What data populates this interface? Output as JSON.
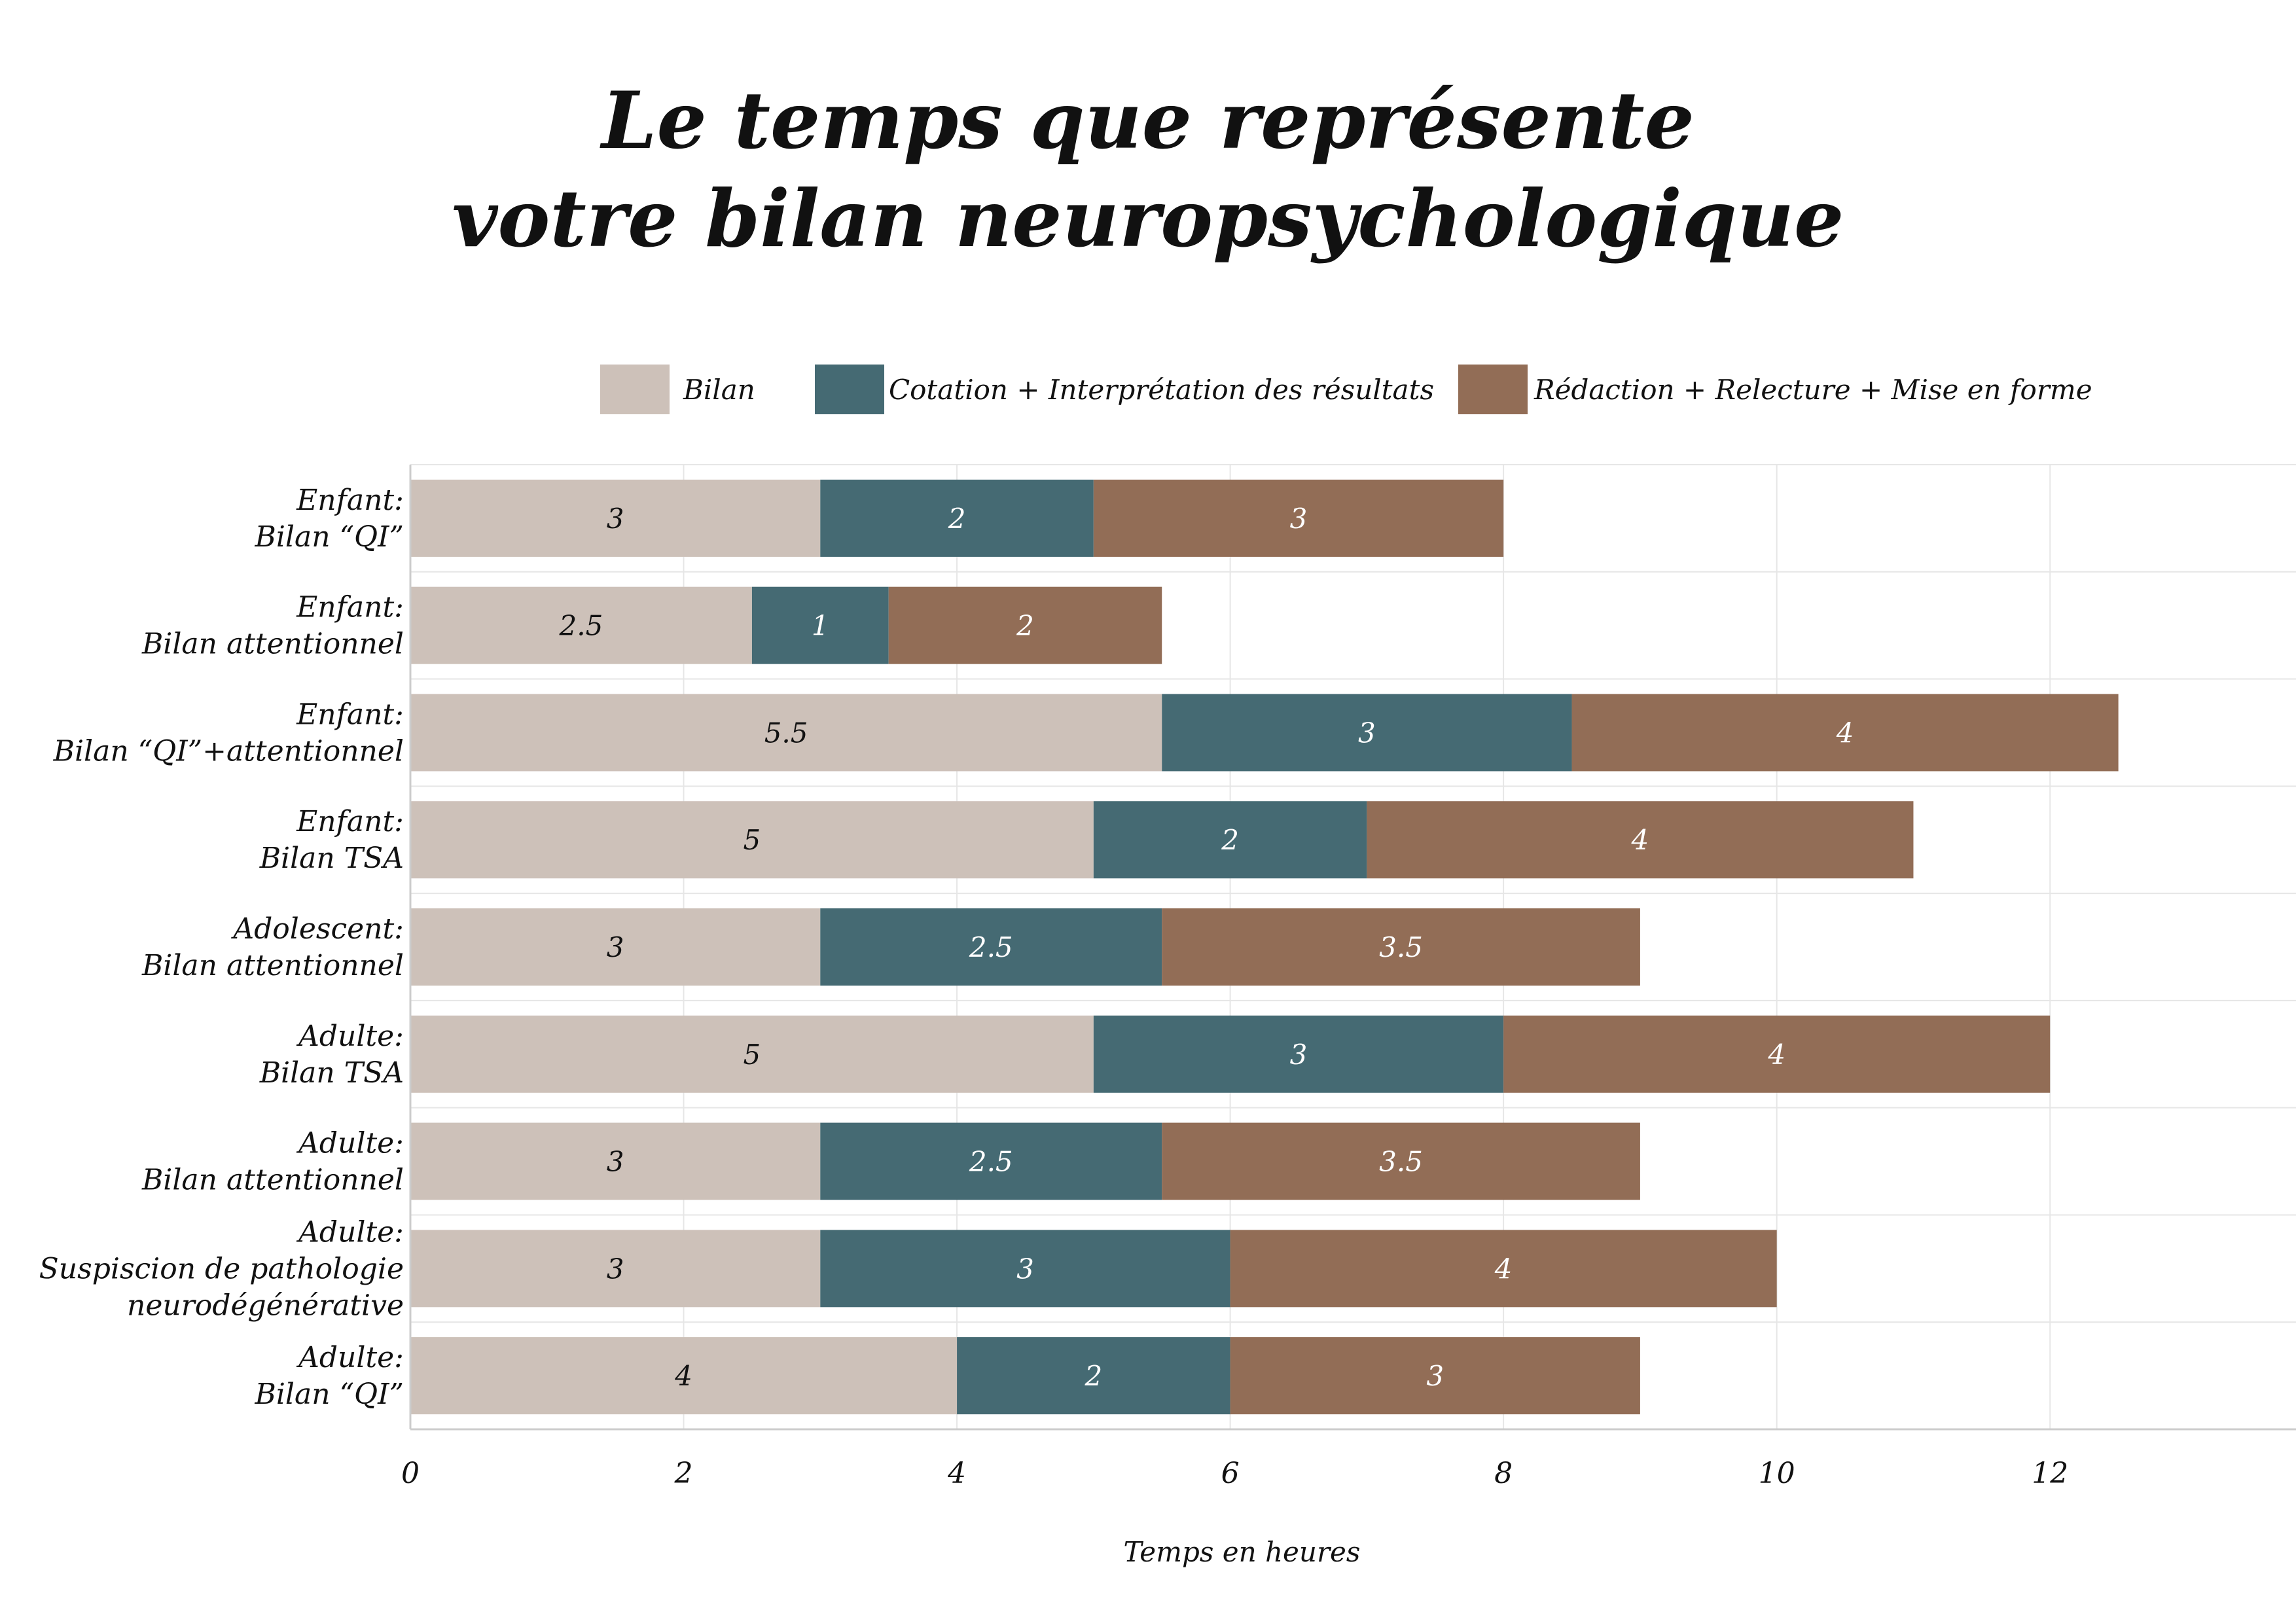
{
  "chart_data": {
    "type": "bar",
    "orientation": "horizontal",
    "stacked": true,
    "title": "Le temps que représente",
    "title_line2": "votre bilan neuropsychologique",
    "xlabel": "Temps en heures",
    "ylabel": "",
    "xlim": [
      0,
      13.8
    ],
    "xticks": [
      0,
      2,
      4,
      6,
      8,
      10,
      12
    ],
    "grid": true,
    "legend_position": "top",
    "categories": [
      [
        "Enfant:",
        "Bilan “QI”"
      ],
      [
        "Enfant:",
        "Bilan attentionnel"
      ],
      [
        "Enfant:",
        "Bilan “QI”+attentionnel"
      ],
      [
        "Enfant:",
        "Bilan TSA"
      ],
      [
        "Adolescent:",
        "Bilan attentionnel"
      ],
      [
        "Adulte:",
        "Bilan TSA"
      ],
      [
        "Adulte:",
        "Bilan attentionnel"
      ],
      [
        "Adulte:",
        "Suspiscion de pathologie",
        "neurodégénérative"
      ],
      [
        "Adulte:",
        "Bilan “QI”"
      ]
    ],
    "series": [
      {
        "name": "Bilan",
        "color": "#cdc1b9",
        "label_color": "#111111",
        "values": [
          3,
          2.5,
          5.5,
          5,
          3,
          5,
          3,
          3,
          4
        ]
      },
      {
        "name": "Cotation + Interprétation des résultats",
        "color": "#456a73",
        "label_color": "#ffffff",
        "values": [
          2,
          1,
          3,
          2,
          2.5,
          3,
          2.5,
          3,
          2
        ]
      },
      {
        "name": "Rédaction + Relecture + Mise en forme",
        "color": "#926d56",
        "label_color": "#ffffff",
        "values": [
          3,
          2,
          4,
          4,
          3.5,
          4,
          3.5,
          4,
          3
        ]
      }
    ],
    "colors": {
      "grid": "#e6e6e6",
      "axis": "#cccccc",
      "text": "#111111"
    }
  }
}
